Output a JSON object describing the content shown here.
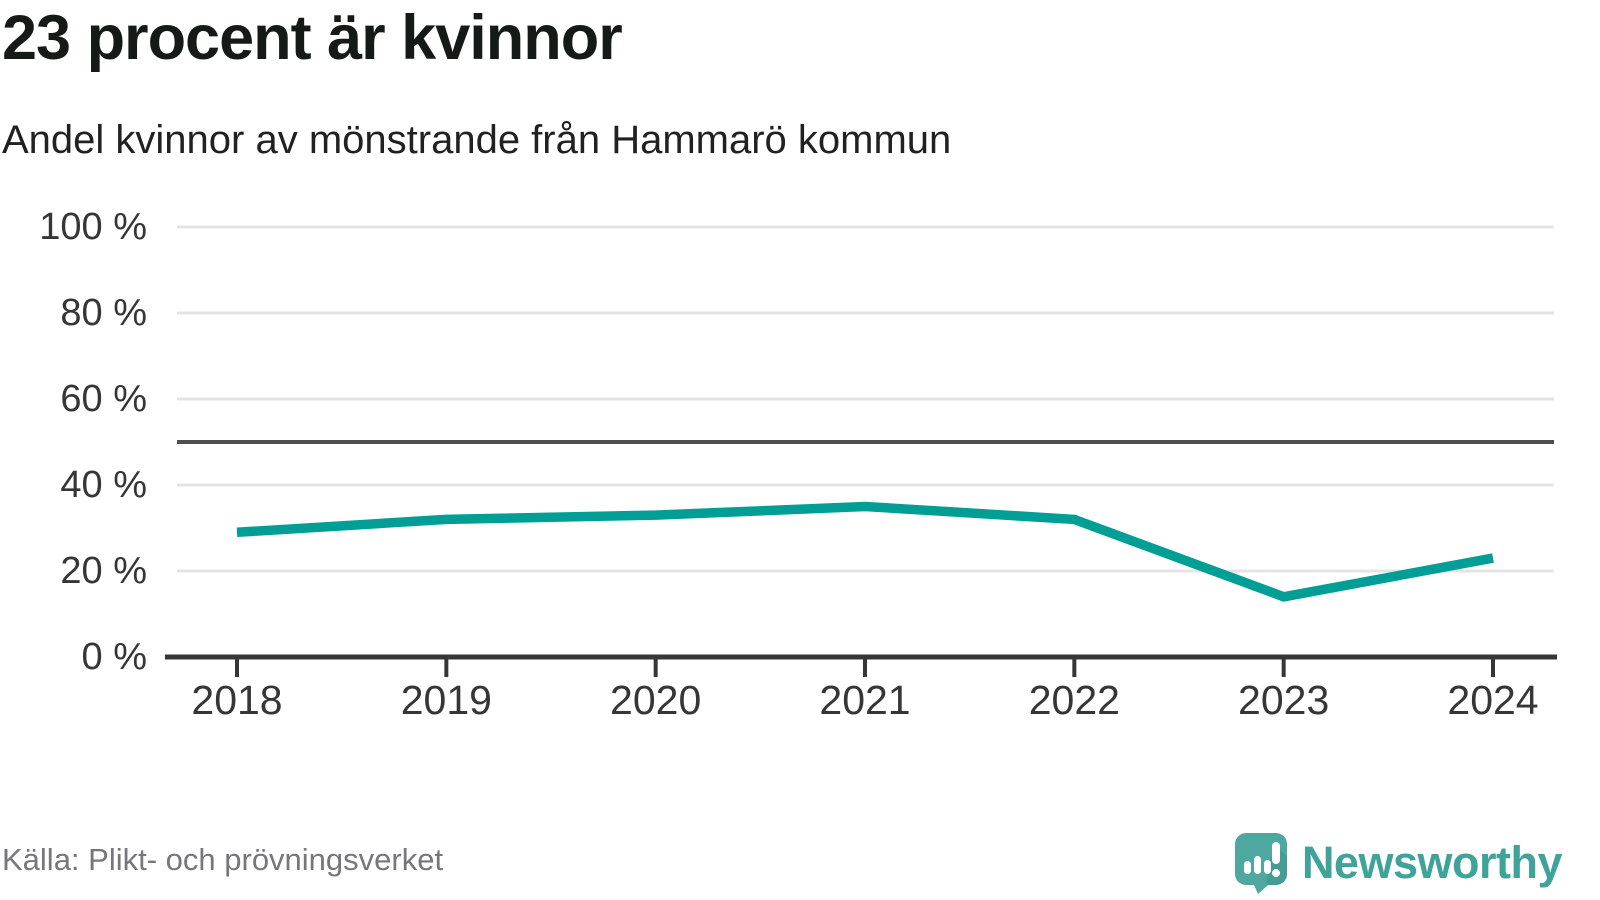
{
  "header": {
    "title": "23 procent är kvinnor",
    "subtitle": "Andel kvinnor av mönstrande från Hammarö kommun"
  },
  "footer": {
    "source": "Källa: Plikt- och prövningsverket",
    "brand": "Newsworthy"
  },
  "colors": {
    "line": "#009E95",
    "reference_line": "#4E4E4E",
    "grid": "#E4E4E4",
    "axis": "#363636",
    "logo_teal": "#4FA8A0",
    "logo_teal_dark": "#3A938C",
    "brand_text": "#3FA39A"
  },
  "chart_data": {
    "type": "line",
    "title": "23 procent är kvinnor",
    "subtitle": "Andel kvinnor av mönstrande från Hammarö kommun",
    "x": [
      2018,
      2019,
      2020,
      2021,
      2022,
      2023,
      2024
    ],
    "series": [
      {
        "name": "Andel kvinnor av mönstrande",
        "values": [
          29,
          32,
          33,
          35,
          32,
          14,
          23
        ]
      }
    ],
    "unit": "%",
    "yticks": [
      0,
      20,
      40,
      60,
      80,
      100
    ],
    "ytick_suffix": " %",
    "ylim": [
      0,
      100
    ],
    "reference_line": 50,
    "grid": "horizontal",
    "legend": "none",
    "source": "Källa: Plikt- och prövningsverket"
  }
}
